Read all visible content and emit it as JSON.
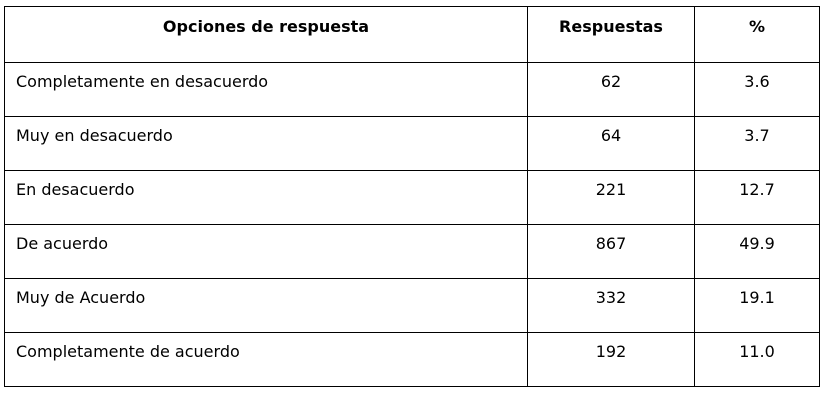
{
  "table": {
    "headers": {
      "option": "Opciones de respuesta",
      "responses": "Respuestas",
      "percent": "%"
    },
    "rows": [
      {
        "option": "Completamente en desacuerdo",
        "responses": "62",
        "percent": "3.6"
      },
      {
        "option": "Muy en desacuerdo",
        "responses": "64",
        "percent": "3.7"
      },
      {
        "option": "En desacuerdo",
        "responses": "221",
        "percent": "12.7"
      },
      {
        "option": "De acuerdo",
        "responses": "867",
        "percent": "49.9"
      },
      {
        "option": "Muy de Acuerdo",
        "responses": "332",
        "percent": "19.1"
      },
      {
        "option": "Completamente de acuerdo",
        "responses": "192",
        "percent": "11.0"
      }
    ]
  }
}
